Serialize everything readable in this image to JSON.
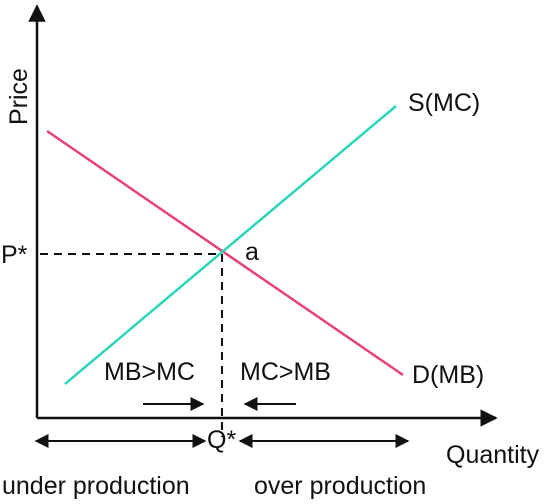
{
  "axes": {
    "y_label": "Price",
    "x_label": "Quantity"
  },
  "curves": {
    "supply_label": "S(MC)",
    "demand_label": "D(MB)",
    "supply_color": "#2ad6b7",
    "demand_color": "#e8407a"
  },
  "equilibrium": {
    "price_label": "P*",
    "quantity_label": "Q*",
    "point_label": "a"
  },
  "annotations": {
    "left_condition": "MB>MC",
    "right_condition": "MC>MB",
    "left_region": "under production",
    "right_region": "over production"
  }
}
